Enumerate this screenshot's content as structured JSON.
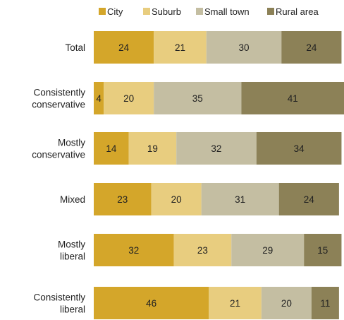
{
  "chart_data": {
    "type": "bar",
    "orientation": "horizontal",
    "stacked": true,
    "percent_stacked": true,
    "legend_position": "top",
    "grid": false,
    "xlim": [
      0,
      100
    ],
    "categories": [
      [
        "Total"
      ],
      [
        "Consistently",
        "conservative"
      ],
      [
        "Mostly",
        "conservative"
      ],
      [
        "Mixed"
      ],
      [
        "Mostly",
        "liberal"
      ],
      [
        "Consistently",
        "liberal"
      ]
    ],
    "series": [
      {
        "name": "City",
        "color": "#d4a62a",
        "values": [
          24,
          4,
          14,
          23,
          32,
          46
        ]
      },
      {
        "name": "Suburb",
        "color": "#e8cd7f",
        "values": [
          21,
          20,
          19,
          20,
          23,
          21
        ]
      },
      {
        "name": "Small town",
        "color": "#c4bea2",
        "values": [
          30,
          35,
          32,
          31,
          29,
          20
        ]
      },
      {
        "name": "Rural area",
        "color": "#8c8157",
        "values": [
          24,
          41,
          34,
          24,
          15,
          11
        ]
      }
    ]
  }
}
